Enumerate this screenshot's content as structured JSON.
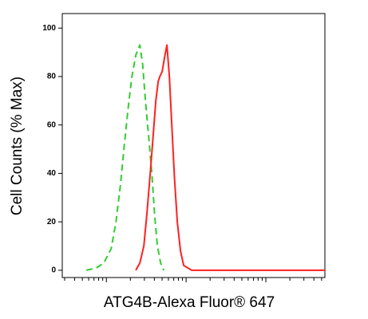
{
  "chart_data": {
    "type": "line",
    "xlabel": "ATG4B-Alexa Fluor® 647",
    "ylabel": "Cell Counts (% Max)",
    "xscale": "log",
    "xlim": [
      2.8,
      5500
    ],
    "ylim": [
      -3,
      106
    ],
    "yticks": [
      0,
      20,
      40,
      60,
      80,
      100
    ],
    "xticks": [
      3,
      4,
      5,
      6,
      7,
      8,
      9,
      10,
      20,
      30,
      40,
      50,
      60,
      70,
      80,
      90,
      100,
      200,
      300,
      400,
      500,
      600,
      700,
      800,
      900,
      1000,
      2000,
      3000,
      4000,
      5000
    ],
    "series": [
      {
        "color": "#33cc33",
        "dashed": true,
        "x": [
          5.6,
          7.5,
          9.3,
          11.5,
          13.2,
          15,
          16.6,
          18.6,
          20.9,
          23.5,
          26.3,
          28.5,
          30.9,
          34,
          37.2,
          40.5,
          43.7,
          47.9,
          52.5
        ],
        "values": [
          0,
          1,
          3,
          9,
          20,
          35,
          50,
          66,
          80,
          89,
          93,
          85,
          70,
          55,
          40,
          22,
          10,
          3,
          0
        ]
      },
      {
        "color": "#ff2020",
        "dashed": false,
        "x": [
          23.4,
          26.3,
          29.5,
          32.4,
          35.5,
          38.9,
          41.7,
          44.7,
          46.8,
          50.1,
          53.7,
          57.5,
          61.7,
          66.1,
          71.6,
          77.6,
          85.1,
          93.3,
          117.5,
          467.7,
          5500
        ],
        "values": [
          0,
          3,
          10,
          24,
          40,
          57,
          70,
          78,
          80,
          82,
          88,
          93,
          80,
          60,
          38,
          20,
          8,
          2,
          0,
          0,
          0
        ]
      }
    ]
  }
}
